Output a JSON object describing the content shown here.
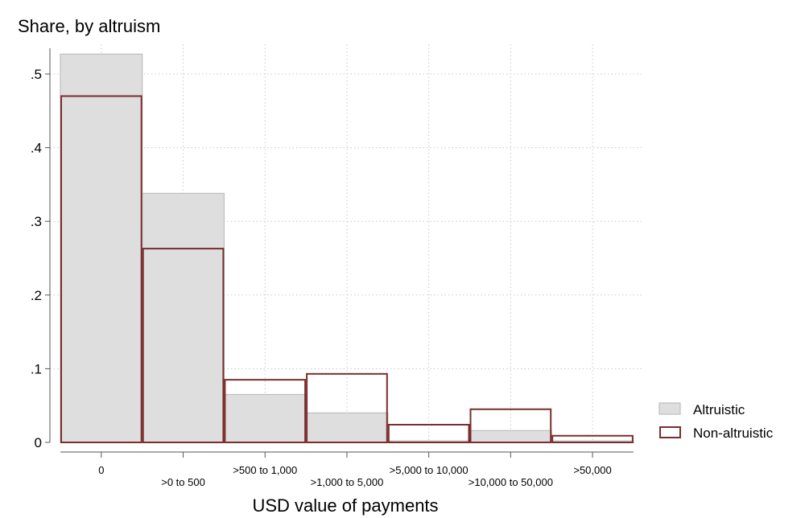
{
  "chart_data": {
    "type": "bar",
    "title": "Share, by altruism",
    "xlabel": "USD value of payments",
    "ylabel": "",
    "categories": [
      "0",
      ">0 to 500",
      ">500 to 1,000",
      ">1,000 to 5,000",
      ">5,000 to 10,000",
      ">10,000 to 50,000",
      ">50,000"
    ],
    "series": [
      {
        "name": "Altruistic",
        "values": [
          0.527,
          0.338,
          0.065,
          0.04,
          0.002,
          0.016,
          0.002
        ],
        "fill": "#dedede",
        "stroke": "#bdbdbd"
      },
      {
        "name": "Non-altruistic",
        "values": [
          0.47,
          0.263,
          0.085,
          0.093,
          0.024,
          0.045,
          0.009
        ],
        "fill": "none",
        "stroke": "#7b2d2d"
      }
    ],
    "ylim": [
      0,
      0.55
    ],
    "yticks": [
      0,
      0.1,
      0.2,
      0.3,
      0.4,
      0.5
    ],
    "ytick_labels": [
      "0",
      ".1",
      ".2",
      ".3",
      ".4",
      ".5"
    ],
    "grid": true,
    "legend": "right"
  }
}
